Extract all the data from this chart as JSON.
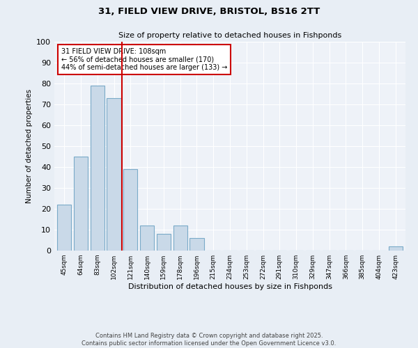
{
  "title_line1": "31, FIELD VIEW DRIVE, BRISTOL, BS16 2TT",
  "title_line2": "Size of property relative to detached houses in Fishponds",
  "xlabel": "Distribution of detached houses by size in Fishponds",
  "ylabel": "Number of detached properties",
  "categories": [
    "45sqm",
    "64sqm",
    "83sqm",
    "102sqm",
    "121sqm",
    "140sqm",
    "159sqm",
    "178sqm",
    "196sqm",
    "215sqm",
    "234sqm",
    "253sqm",
    "272sqm",
    "291sqm",
    "310sqm",
    "329sqm",
    "347sqm",
    "366sqm",
    "385sqm",
    "404sqm",
    "423sqm"
  ],
  "values": [
    22,
    45,
    79,
    73,
    39,
    12,
    8,
    12,
    6,
    0,
    0,
    0,
    0,
    0,
    0,
    0,
    0,
    0,
    0,
    0,
    2
  ],
  "bar_color": "#c9d9e8",
  "bar_edge_color": "#7aaac8",
  "vline_x": 3.5,
  "vline_color": "#cc0000",
  "annotation_text": "31 FIELD VIEW DRIVE: 108sqm\n← 56% of detached houses are smaller (170)\n44% of semi-detached houses are larger (133) →",
  "annotation_box_color": "#ffffff",
  "annotation_box_edge": "#cc0000",
  "ylim": [
    0,
    100
  ],
  "yticks": [
    0,
    10,
    20,
    30,
    40,
    50,
    60,
    70,
    80,
    90,
    100
  ],
  "bg_color": "#e8eef5",
  "plot_bg_color": "#eef2f8",
  "footer_line1": "Contains HM Land Registry data © Crown copyright and database right 2025.",
  "footer_line2": "Contains public sector information licensed under the Open Government Licence v3.0."
}
